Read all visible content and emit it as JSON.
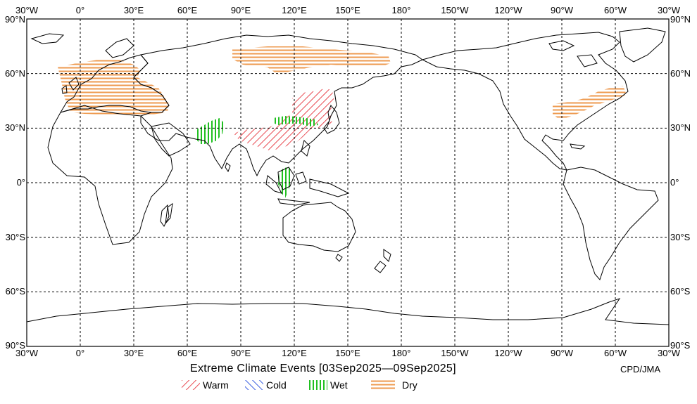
{
  "map": {
    "title": "Extreme Climate Events [03Sep2025—09Sep2025]",
    "credit": "CPD/JMA",
    "top_lon_labels": [
      "30°W",
      "0°",
      "30°E",
      "60°E",
      "90°E",
      "120°E",
      "150°E",
      "180°",
      "150°W",
      "120°W",
      "90°W",
      "60°W",
      "30°W"
    ],
    "bottom_lon_labels": [
      "30°W",
      "0°",
      "30°E",
      "60°E",
      "90°E",
      "120°E",
      "150°E",
      "180°",
      "150°W",
      "120°W",
      "90°W",
      "60°W",
      "30°W"
    ],
    "lat_labels": [
      "90°N",
      "60°N",
      "30°N",
      "0°",
      "30°S",
      "60°S",
      "90°S"
    ],
    "colors": {
      "warm": "#e8474f",
      "cold": "#3b5fe0",
      "wet": "#22c022",
      "dry": "#ee9a4f",
      "coast": "#000000",
      "grid": "#000000"
    }
  },
  "legend": {
    "warm": "Warm",
    "cold": "Cold",
    "wet": "Wet",
    "dry": "Dry"
  }
}
